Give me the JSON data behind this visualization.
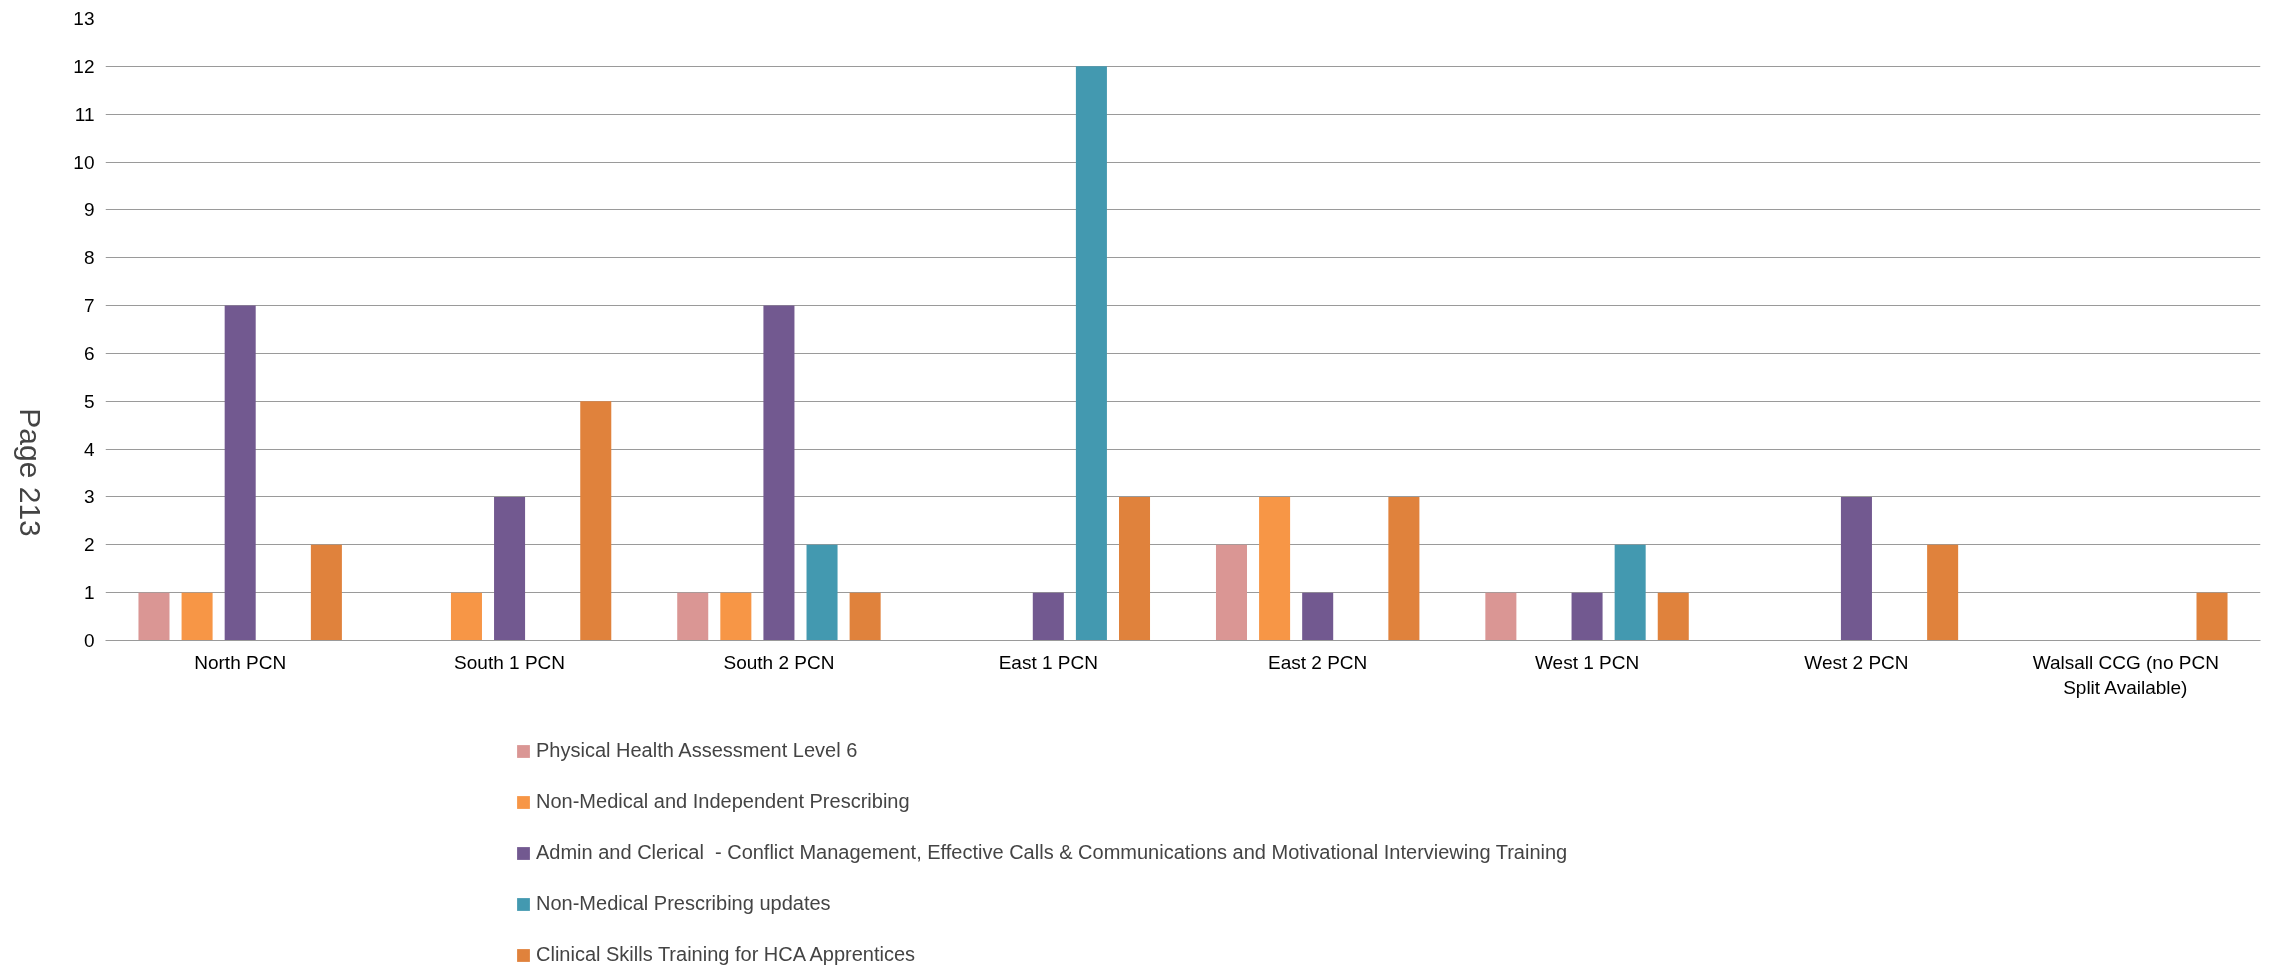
{
  "chart_data": {
    "type": "bar",
    "categories": [
      "North PCN",
      "South 1 PCN",
      "South 2 PCN",
      "East 1 PCN",
      "East 2 PCN",
      "West 1 PCN",
      "West 2 PCN",
      "Walsall CCG (no PCN Split Available)"
    ],
    "series": [
      {
        "name": "Physical Health Assessment Level 6",
        "color": "#da9694",
        "values": [
          1,
          null,
          1,
          null,
          2,
          1,
          null,
          null
        ]
      },
      {
        "name": "Non-Medical and Independent Prescribing",
        "color": "#f79646",
        "values": [
          1,
          1,
          1,
          null,
          3,
          null,
          null,
          null
        ]
      },
      {
        "name": "Admin and Clerical  - Conflict Management, Effective Calls & Communications and Motivational Interviewing Training",
        "color": "#725990",
        "values": [
          7,
          3,
          7,
          1,
          1,
          1,
          3,
          null
        ]
      },
      {
        "name": "Non-Medical Prescribing updates",
        "color": "#4399b0",
        "values": [
          null,
          null,
          2,
          12,
          null,
          2,
          null,
          null
        ]
      },
      {
        "name": "Clinical Skills Training for HCA Apprentices",
        "color": "#e0823c",
        "values": [
          2,
          5,
          1,
          3,
          3,
          1,
          2,
          1
        ]
      }
    ],
    "ylim": [
      0,
      13
    ],
    "yticks": [
      0,
      1,
      2,
      3,
      4,
      5,
      6,
      7,
      8,
      9,
      10,
      11,
      12,
      13
    ],
    "grid": "y",
    "legend": "bottom",
    "annotations": [
      "Page 213"
    ]
  }
}
